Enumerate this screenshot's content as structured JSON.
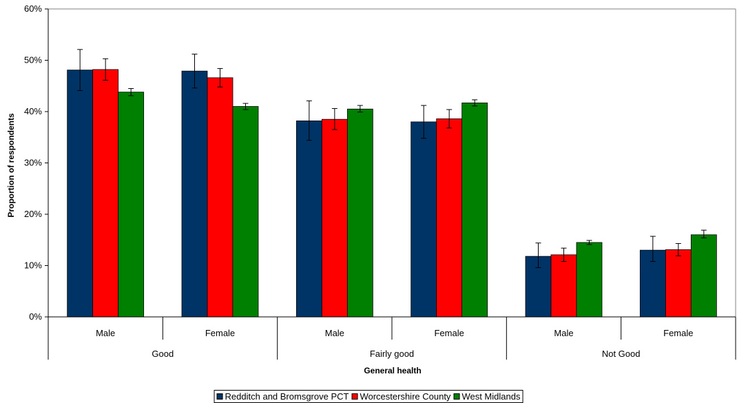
{
  "chart_data": {
    "type": "bar",
    "groups": [
      {
        "label": "Good",
        "subcategories": [
          "Male",
          "Female"
        ]
      },
      {
        "label": "Fairly good",
        "subcategories": [
          "Male",
          "Female"
        ]
      },
      {
        "label": "Not Good",
        "subcategories": [
          "Male",
          "Female"
        ]
      }
    ],
    "categories": [
      "Male",
      "Female",
      "Male",
      "Female",
      "Male",
      "Female"
    ],
    "series": [
      {
        "name": "Redditch and Bromsgrove PCT",
        "color": "#003366",
        "values": [
          48.1,
          47.9,
          38.2,
          38.0,
          11.8,
          13.0
        ],
        "error_low": [
          44.1,
          44.6,
          34.4,
          34.8,
          9.6,
          10.8
        ],
        "error_high": [
          52.1,
          51.2,
          42.1,
          41.2,
          14.4,
          15.7
        ]
      },
      {
        "name": "Worcestershire County",
        "color": "#FF0000",
        "values": [
          48.2,
          46.6,
          38.5,
          38.6,
          12.1,
          13.1
        ],
        "error_low": [
          46.1,
          44.8,
          36.5,
          36.8,
          10.8,
          11.9
        ],
        "error_high": [
          50.3,
          48.4,
          40.6,
          40.4,
          13.4,
          14.3
        ]
      },
      {
        "name": "West Midlands",
        "color": "#008000",
        "values": [
          43.8,
          41.0,
          40.5,
          41.7,
          14.5,
          16.0
        ],
        "error_low": [
          43.1,
          40.4,
          39.9,
          41.1,
          14.1,
          15.4
        ],
        "error_high": [
          44.5,
          41.6,
          41.2,
          42.3,
          14.9,
          16.9
        ]
      }
    ],
    "y_ticks": [
      "0%",
      "10%",
      "20%",
      "30%",
      "40%",
      "50%",
      "60%"
    ],
    "ylim": [
      0,
      60
    ],
    "xlabel": "General health",
    "ylabel": "Proportion of respondents",
    "grid": false,
    "legend_position": "bottom-center"
  }
}
